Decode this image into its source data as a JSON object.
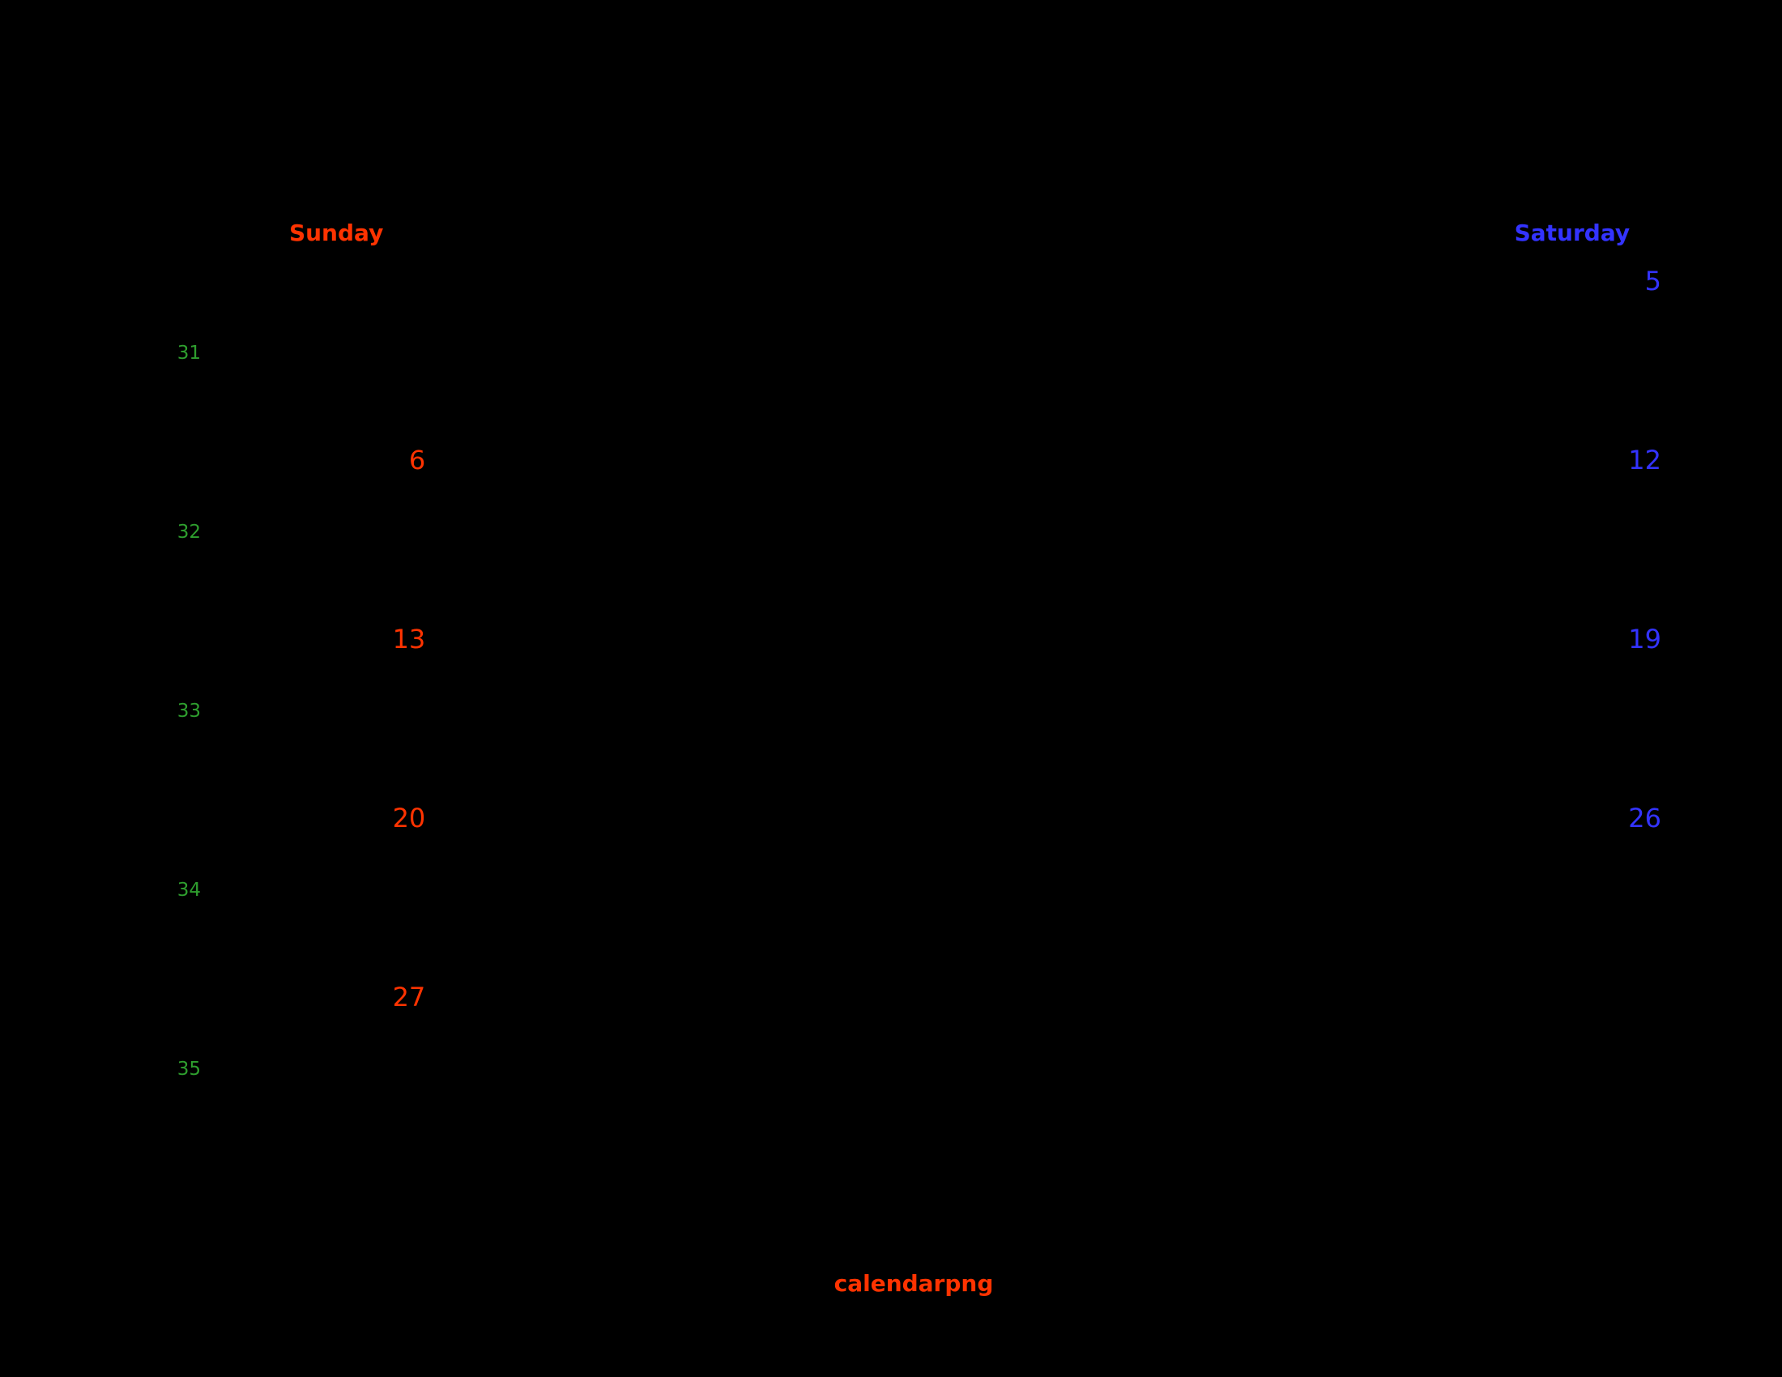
{
  "calendar": {
    "day_headers": {
      "sunday": "Sunday",
      "saturday": "Saturday"
    },
    "weeks": [
      {
        "week": "31",
        "sunday": "",
        "saturday": "5"
      },
      {
        "week": "32",
        "sunday": "6",
        "saturday": "12"
      },
      {
        "week": "33",
        "sunday": "13",
        "saturday": "19"
      },
      {
        "week": "34",
        "sunday": "20",
        "saturday": "26"
      },
      {
        "week": "35",
        "sunday": "27",
        "saturday": ""
      }
    ],
    "colors": {
      "background": "#000000",
      "sunday_red": "#ff3300",
      "saturday_blue": "#3333ff",
      "week_number_green": "#2e9e2e"
    }
  },
  "footer": {
    "title": "calendarpng"
  }
}
